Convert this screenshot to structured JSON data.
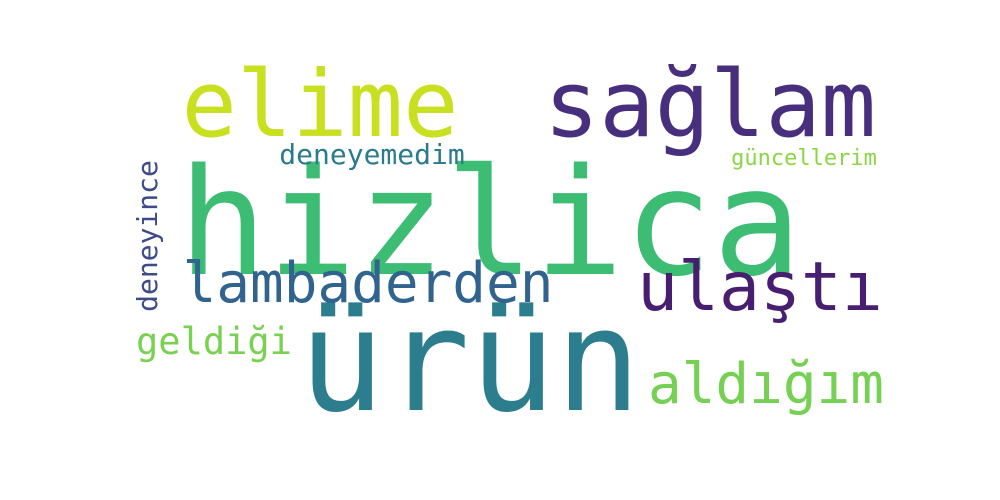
{
  "words": [
    {
      "text": "hizlica",
      "color": "#3dbc74"
    },
    {
      "text": "ürün",
      "color": "#2c7e8e"
    },
    {
      "text": "sağlam",
      "color": "#472f7d"
    },
    {
      "text": "elime",
      "color": "#c8e020"
    },
    {
      "text": "ulaştı",
      "color": "#481f70"
    },
    {
      "text": "lambaderden",
      "color": "#30648e"
    },
    {
      "text": "aldığım",
      "color": "#75d054"
    },
    {
      "text": "deneyemedim",
      "color": "#2b7b8e"
    },
    {
      "text": "güncellerim",
      "color": "#8bd646"
    },
    {
      "text": "deneyince",
      "color": "#3e4a89"
    },
    {
      "text": "geldiği",
      "color": "#7ad151"
    }
  ]
}
